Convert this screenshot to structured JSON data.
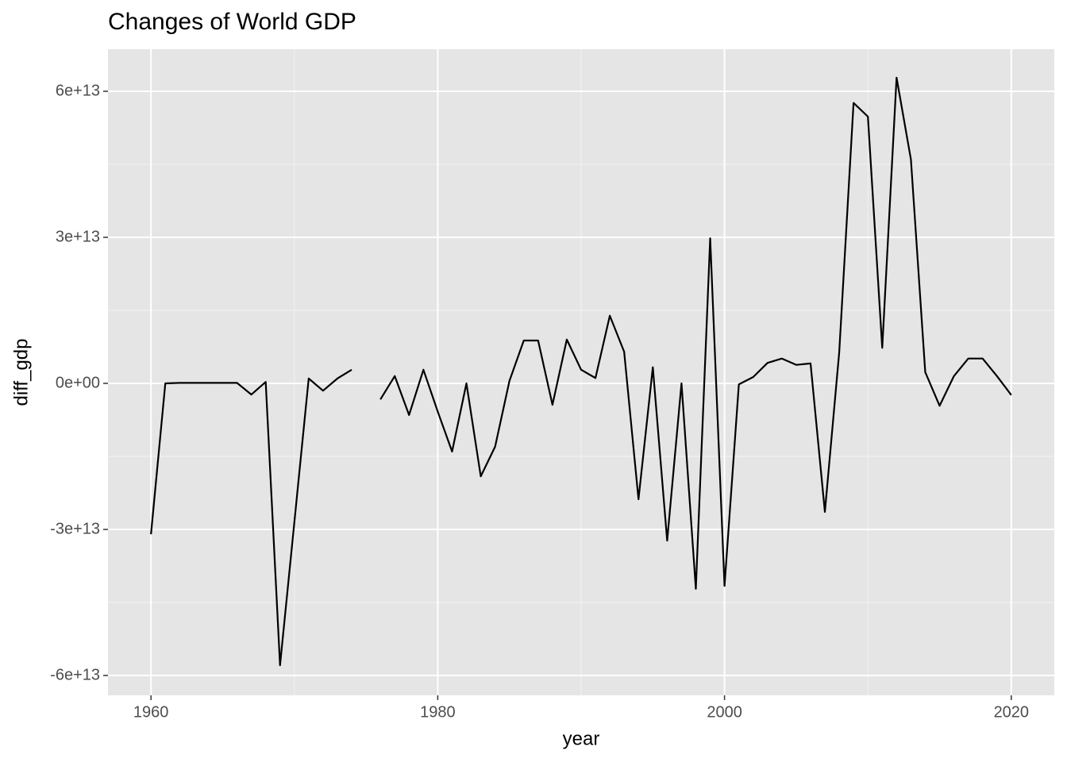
{
  "chart_data": {
    "type": "line",
    "title": "Changes of World GDP",
    "x_label": "year",
    "y_label": "diff_gdp",
    "x": [
      1960,
      1961,
      1962,
      1963,
      1964,
      1965,
      1966,
      1967,
      1968,
      1969,
      1970,
      1971,
      1972,
      1973,
      1974,
      1975,
      1976,
      1977,
      1978,
      1979,
      1980,
      1981,
      1982,
      1983,
      1984,
      1985,
      1986,
      1987,
      1988,
      1989,
      1990,
      1991,
      1992,
      1993,
      1994,
      1995,
      1996,
      1997,
      1998,
      1999,
      2000,
      2001,
      2002,
      2003,
      2004,
      2005,
      2006,
      2007,
      2008,
      2009,
      2010,
      2011,
      2012,
      2013,
      2014,
      2015,
      2016,
      2017,
      2018,
      2019,
      2020
    ],
    "values": [
      -31000000000000.0,
      0,
      100000000000.0,
      100000000000.0,
      100000000000.0,
      100000000000.0,
      100000000000.0,
      -2300000000000.0,
      300000000000.0,
      -57900000000000.0,
      -28500000000000.0,
      1000000000000.0,
      -1500000000000.0,
      1000000000000.0,
      2800000000000.0,
      null,
      -3300000000000.0,
      1500000000000.0,
      -6500000000000.0,
      2800000000000.0,
      -5800000000000.0,
      -14000000000000.0,
      0,
      -19100000000000.0,
      -13000000000000.0,
      500000000000.0,
      8800000000000.0,
      8800000000000.0,
      -4400000000000.0,
      9000000000000.0,
      2800000000000.0,
      1100000000000.0,
      13900000000000.0,
      6500000000000.0,
      -23800000000000.0,
      3300000000000.0,
      -32300000000000.0,
      0,
      -42200000000000.0,
      29800000000000.0,
      -41600000000000.0,
      -200000000000.0,
      1300000000000.0,
      4200000000000.0,
      5100000000000.0,
      3800000000000.0,
      4100000000000.0,
      -26400000000000.0,
      6400000000000.0,
      57600000000000.0,
      54800000000000.0,
      7300000000000.0,
      62800000000000.0,
      46000000000000.0,
      2300000000000.0,
      -4600000000000.0,
      1500000000000.0,
      5100000000000.0,
      5100000000000.0,
      1500000000000.0,
      -2400000000000.0
    ],
    "color": "#000000",
    "xlim": [
      1957,
      2023
    ],
    "xticks": [
      1960,
      1980,
      2000,
      2020
    ],
    "ylim": [
      -64080000000000.0,
      68640000000000.0
    ],
    "yticks": [
      {
        "value": -60000000000000.0,
        "label": "-6e+13"
      },
      {
        "value": -30000000000000.0,
        "label": "-3e+13"
      },
      {
        "value": 0,
        "label": "0e+00"
      },
      {
        "value": 30000000000000.0,
        "label": "3e+13"
      },
      {
        "value": 60000000000000.0,
        "label": "6e+13"
      }
    ],
    "grid": true
  }
}
